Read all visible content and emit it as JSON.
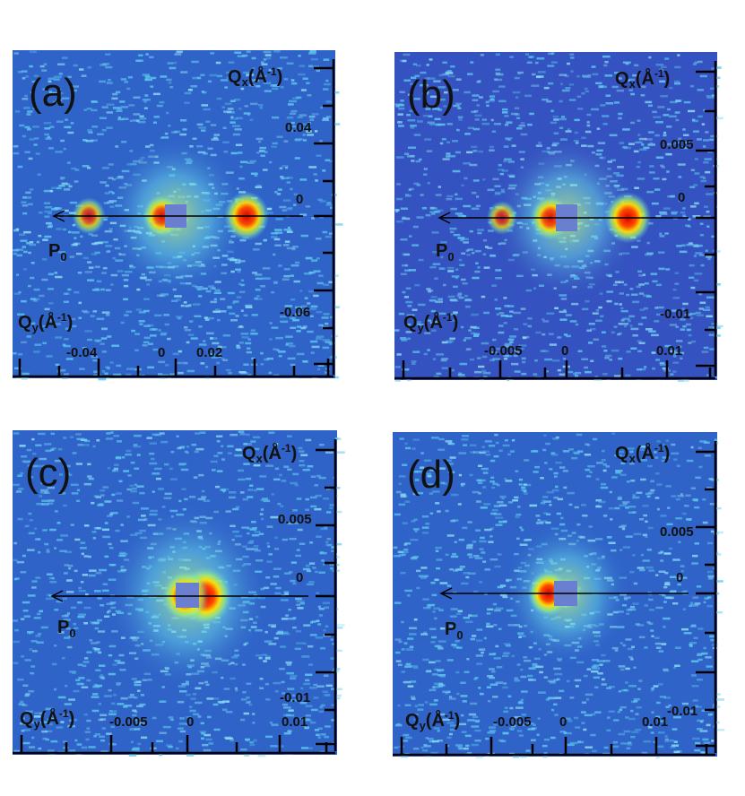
{
  "chart_data": [
    {
      "type": "heatmap",
      "panel_label": "(a)",
      "x_axis_name": "Q",
      "x_axis_sub": "x",
      "y_axis_name": "Q",
      "y_axis_sub": "y",
      "axis_unit_open": "(Å",
      "axis_unit_exp": "-1",
      "axis_unit_close": ")",
      "beam_label": "P",
      "beam_sub": "0",
      "qy_ticks": [
        "-0.04",
        "0",
        "0.02"
      ],
      "qx_ticks": [
        "0.04",
        "0",
        "-0.06"
      ],
      "peaks": [
        {
          "qy": 0.031,
          "qx": 0.0,
          "intensity": 0.95
        },
        {
          "qy": -0.038,
          "qx": 0.0,
          "intensity": 0.55
        },
        {
          "qy": -0.006,
          "qx": 0.0,
          "intensity": 0.75
        }
      ],
      "colors": {
        "background": "#2f63c8",
        "speckle": "#5fc8f0",
        "peak": "#d40000"
      }
    },
    {
      "type": "heatmap",
      "panel_label": "(b)",
      "x_axis_name": "Q",
      "x_axis_sub": "x",
      "y_axis_name": "Q",
      "y_axis_sub": "y",
      "axis_unit_open": "(Å",
      "axis_unit_exp": "-1",
      "axis_unit_close": ")",
      "beam_label": "P",
      "beam_sub": "0",
      "qy_ticks": [
        "-0.005",
        "0",
        "0.01"
      ],
      "qx_ticks": [
        "0.005",
        "0",
        "-0.01"
      ],
      "peaks": [
        {
          "qy": 0.0057,
          "qx": 0.0,
          "intensity": 1.0
        },
        {
          "qy": -0.006,
          "qx": 0.0,
          "intensity": 0.45
        },
        {
          "qy": -0.0015,
          "qx": 0.0,
          "intensity": 0.8
        }
      ],
      "colors": {
        "background": "#3553c0",
        "speckle": "#5fc8f0",
        "peak": "#d40000"
      }
    },
    {
      "type": "heatmap",
      "panel_label": "(c)",
      "x_axis_name": "Q",
      "x_axis_sub": "x",
      "y_axis_name": "Q",
      "y_axis_sub": "y",
      "axis_unit_open": "(Å",
      "axis_unit_exp": "-1",
      "axis_unit_close": ")",
      "beam_label": "P",
      "beam_sub": "0",
      "qy_ticks": [
        "-0.005",
        "0",
        "0.01"
      ],
      "qx_ticks": [
        "0.005",
        "0",
        "-0.01"
      ],
      "peaks": [
        {
          "qy": 0.0018,
          "qx": 0.0,
          "intensity": 1.0
        },
        {
          "qy": -0.0002,
          "qx": 0.0,
          "intensity": 0.8
        }
      ],
      "colors": {
        "background": "#2f63c8",
        "speckle": "#5fc8f0",
        "peak": "#d40000"
      }
    },
    {
      "type": "heatmap",
      "panel_label": "(d)",
      "x_axis_name": "Q",
      "x_axis_sub": "x",
      "y_axis_name": "Q",
      "y_axis_sub": "y",
      "axis_unit_open": "(Å",
      "axis_unit_exp": "-1",
      "axis_unit_close": ")",
      "beam_label": "P",
      "beam_sub": "0",
      "qy_ticks": [
        "-0.005",
        "0",
        "0.01"
      ],
      "qx_ticks": [
        "0.005",
        "0",
        "-0.01"
      ],
      "peaks": [
        {
          "qy": -0.0016,
          "qx": 0.0,
          "intensity": 1.0
        },
        {
          "qy": 0.0001,
          "qx": 0.0,
          "intensity": 0.5
        }
      ],
      "colors": {
        "background": "#2f63c8",
        "speckle": "#5fc8f0",
        "peak": "#d40000"
      }
    }
  ]
}
